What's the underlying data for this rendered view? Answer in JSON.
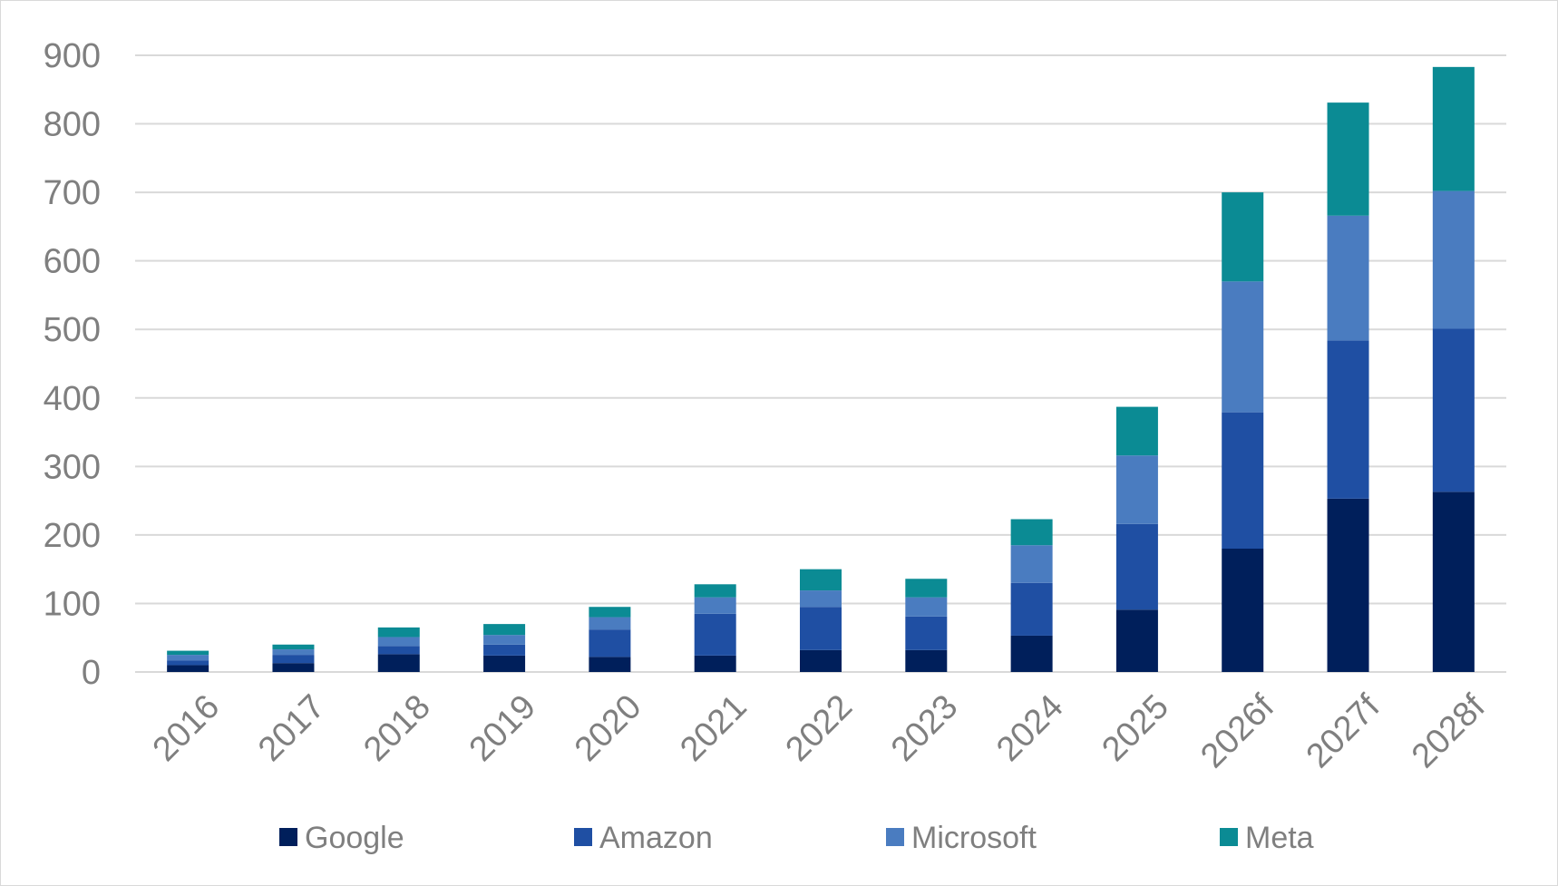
{
  "chart_data": {
    "type": "bar",
    "stacked": true,
    "categories": [
      "2016",
      "2017",
      "2018",
      "2019",
      "2020",
      "2021",
      "2022",
      "2023",
      "2024",
      "2025",
      "2026f",
      "2027f",
      "2028f"
    ],
    "series": [
      {
        "name": "Google",
        "color": "#001f5b",
        "values": [
          10,
          13,
          26,
          24,
          22,
          24,
          32,
          32,
          53,
          91,
          180,
          253,
          263
        ]
      },
      {
        "name": "Amazon",
        "color": "#1f4fa3",
        "values": [
          7,
          12,
          12,
          16,
          40,
          61,
          63,
          49,
          77,
          125,
          199,
          231,
          238
        ]
      },
      {
        "name": "Microsoft",
        "color": "#4a7cc0",
        "values": [
          8,
          8,
          13,
          14,
          18,
          24,
          24,
          28,
          55,
          100,
          191,
          182,
          201
        ]
      },
      {
        "name": "Meta",
        "color": "#0b8b94",
        "values": [
          6,
          7,
          14,
          16,
          15,
          19,
          31,
          27,
          38,
          71,
          130,
          165,
          181
        ]
      }
    ],
    "title": "",
    "xlabel": "",
    "ylabel": "",
    "ylim": [
      0,
      900
    ],
    "yticks": [
      "0",
      "100",
      "200",
      "300",
      "400",
      "500",
      "600",
      "700",
      "800",
      "900"
    ],
    "grid": true,
    "legend_position": "bottom"
  },
  "colors": {
    "gridline": "#d9d9d9",
    "axis_text": "#7f7f7f"
  }
}
